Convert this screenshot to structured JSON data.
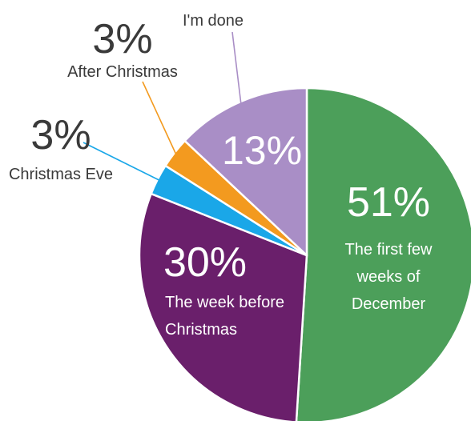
{
  "chart_data": {
    "type": "pie",
    "title": "",
    "start_angle_deg": 0,
    "direction": "clockwise",
    "slices": [
      {
        "key": "first-weeks-december",
        "label_lines": [
          "The first few",
          "weeks of",
          "December"
        ],
        "percent_label": "51%",
        "value": 51,
        "color": "#4c9f5a",
        "text_color": "#ffffff",
        "label_inside": true
      },
      {
        "key": "week-before-christmas",
        "label_lines": [
          "The week before",
          "Christmas"
        ],
        "percent_label": "30%",
        "value": 30,
        "color": "#6a1f6b",
        "text_color": "#ffffff",
        "label_inside": true
      },
      {
        "key": "christmas-eve",
        "label_lines": [
          "Christmas Eve"
        ],
        "percent_label": "3%",
        "value": 3,
        "color": "#1aa7e8",
        "text_color": "#3a3a3a",
        "label_inside": false
      },
      {
        "key": "after-christmas",
        "label_lines": [
          "After Christmas"
        ],
        "percent_label": "3%",
        "value": 3,
        "color": "#f39a1f",
        "text_color": "#3a3a3a",
        "label_inside": false
      },
      {
        "key": "im-done",
        "label_lines": [
          "I'm done"
        ],
        "percent_label": "13%",
        "value": 13,
        "color": "#a98ec6",
        "text_color": "#ffffff",
        "label_inside": true
      }
    ]
  }
}
